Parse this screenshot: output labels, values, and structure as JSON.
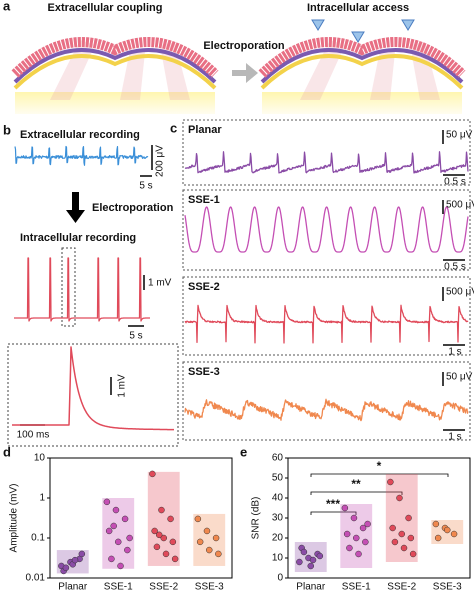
{
  "panel_a": {
    "label": "a",
    "left_title": "Extracellular coupling",
    "right_title": "Intracellular access",
    "arrow_label": "Electroporation"
  },
  "panel_b": {
    "label": "b",
    "top_title": "Extracellular recording",
    "top_vscale": "200 μV",
    "top_tscale": "5 s",
    "arrow_label": "Electroporation",
    "bottom_title": "Intracellular recording",
    "bottom_vscale": "1 mV",
    "bottom_tscale": "5 s",
    "inset_vscale": "1 mV",
    "inset_tscale": "100 ms"
  },
  "panel_c": {
    "label": "c",
    "traces": [
      {
        "name": "Planar",
        "color": "#8a4ca6",
        "vscale": "50 μV",
        "tscale": "0.5 s"
      },
      {
        "name": "SSE-1",
        "color": "#c44fb4",
        "vscale": "500 μV",
        "tscale": "0.5 s"
      },
      {
        "name": "SSE-2",
        "color": "#e04a5a",
        "vscale": "500 μV",
        "tscale": "1 s"
      },
      {
        "name": "SSE-3",
        "color": "#f0884e",
        "vscale": "50 μV",
        "tscale": "1 s"
      }
    ]
  },
  "panel_d": {
    "label": "d",
    "ylabel": "Amplitude (mV)",
    "log_scale": true,
    "ylim": [
      0.01,
      10
    ],
    "yticks": [
      0.01,
      0.1,
      1,
      10
    ],
    "categories": [
      "Planar",
      "SSE-1",
      "SSE-2",
      "SSE-3"
    ],
    "colors": [
      "#8a4ca6",
      "#c44fb4",
      "#e04a5a",
      "#f0884e"
    ],
    "boxes": [
      {
        "low": 0.013,
        "high": 0.05
      },
      {
        "low": 0.017,
        "high": 1.0
      },
      {
        "low": 0.02,
        "high": 4.5
      },
      {
        "low": 0.02,
        "high": 0.4
      }
    ],
    "points": [
      [
        0.02,
        0.025,
        0.03,
        0.015,
        0.022,
        0.04,
        0.018,
        0.028
      ],
      [
        0.8,
        0.5,
        0.3,
        0.15,
        0.08,
        0.05,
        0.03,
        0.02,
        0.1,
        0.2
      ],
      [
        4,
        0.5,
        0.3,
        0.15,
        0.1,
        0.08,
        0.06,
        0.04,
        0.03,
        0.12
      ],
      [
        0.3,
        0.15,
        0.1,
        0.08,
        0.05,
        0.04
      ]
    ]
  },
  "panel_e": {
    "label": "e",
    "ylabel": "SNR (dB)",
    "ylim": [
      0,
      60
    ],
    "yticks": [
      0,
      10,
      20,
      30,
      40,
      50,
      60
    ],
    "categories": [
      "Planar",
      "SSE-1",
      "SSE-2",
      "SSE-3"
    ],
    "colors": [
      "#8a4ca6",
      "#c44fb4",
      "#e04a5a",
      "#f0884e"
    ],
    "boxes": [
      {
        "low": 3,
        "high": 18
      },
      {
        "low": 5,
        "high": 37
      },
      {
        "low": 8,
        "high": 52
      },
      {
        "low": 17,
        "high": 29
      }
    ],
    "points": [
      [
        8,
        10,
        12,
        15,
        6,
        11,
        13,
        9
      ],
      [
        35,
        30,
        25,
        22,
        20,
        18,
        15,
        12,
        27
      ],
      [
        48,
        40,
        30,
        25,
        22,
        20,
        18,
        15,
        12
      ],
      [
        27,
        25,
        22,
        20,
        24
      ]
    ],
    "significance": [
      "***",
      "**",
      "*"
    ]
  }
}
